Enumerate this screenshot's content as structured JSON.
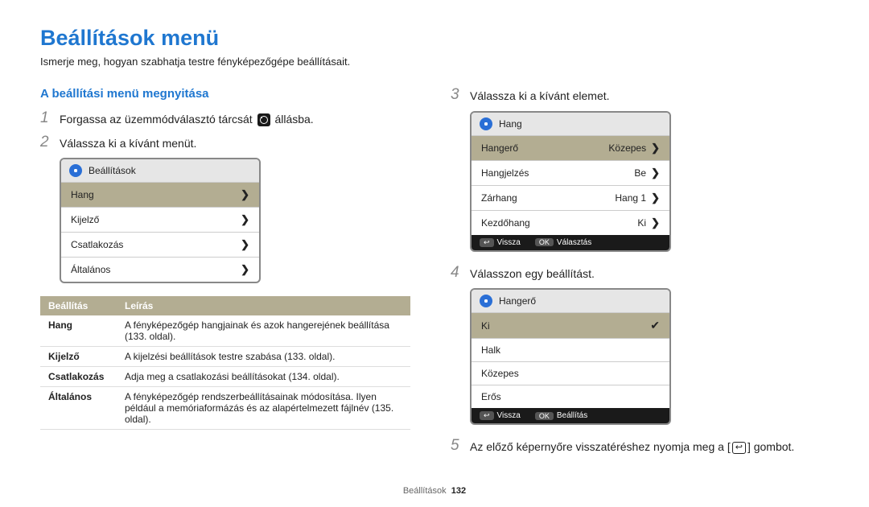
{
  "page_title": "Beállítások menü",
  "intro": "Ismerje meg, hogyan szabhatja testre fényképezőgépe beállításait.",
  "left": {
    "subheading": "A beállítási menü megnyitása",
    "step1_pre": "Forgassa az üzemmódválasztó tárcsát ",
    "step1_post": " állásba.",
    "step2": "Válassza ki a kívánt menüt.",
    "menu_header": "Beállítások",
    "menu_items": [
      "Hang",
      "Kijelző",
      "Csatlakozás",
      "Általános"
    ],
    "table": {
      "col_setting": "Beállítás",
      "col_desc": "Leírás",
      "rows": [
        {
          "name": "Hang",
          "desc": "A fényképezőgép hangjainak és azok hangerejének beállítása (133. oldal)."
        },
        {
          "name": "Kijelző",
          "desc": "A kijelzési beállítások testre szabása (133. oldal)."
        },
        {
          "name": "Csatlakozás",
          "desc": "Adja meg a csatlakozási beállításokat (134. oldal)."
        },
        {
          "name": "Általános",
          "desc": "A fényképezőgép rendszerbeállításainak módosítása. Ilyen például a memóriaformázás és az alapértelmezett fájlnév (135. oldal)."
        }
      ]
    }
  },
  "right": {
    "step3": "Válassza ki a kívánt elemet.",
    "sound_menu": {
      "header": "Hang",
      "rows": [
        {
          "label": "Hangerő",
          "value": "Közepes",
          "highlight": true
        },
        {
          "label": "Hangjelzés",
          "value": "Be"
        },
        {
          "label": "Zárhang",
          "value": "Hang 1"
        },
        {
          "label": "Kezdőhang",
          "value": "Ki"
        }
      ],
      "footer_back": "Vissza",
      "footer_ok": "Választás"
    },
    "step4": "Válasszon egy beállítást.",
    "volume_menu": {
      "header": "Hangerő",
      "options": [
        "Ki",
        "Halk",
        "Közepes",
        "Erős"
      ],
      "selected_index": 0,
      "footer_back": "Vissza",
      "footer_ok": "Beállítás"
    },
    "step5_pre": "Az előző képernyőre visszatéréshez nyomja meg a [",
    "step5_post": "] gombot.",
    "back_symbol": "↩"
  },
  "footer": {
    "section": "Beállítások",
    "page": "132"
  },
  "labels": {
    "ok": "OK",
    "back_chip": "↩"
  }
}
